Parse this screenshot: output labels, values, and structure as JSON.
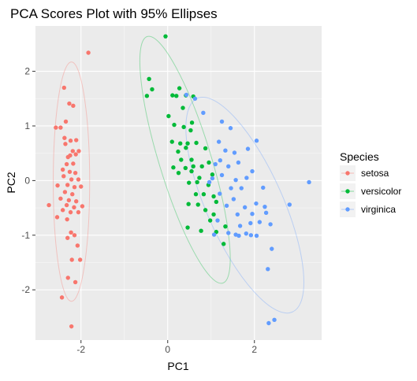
{
  "chart_data": {
    "type": "scatter",
    "title": "PCA Scores Plot with 95% Ellipses",
    "xlabel": "PC1",
    "ylabel": "PC2",
    "xlim": [
      -3.05,
      3.55
    ],
    "ylim": [
      -2.92,
      2.83
    ],
    "xticks": [
      -2,
      0,
      2
    ],
    "yticks": [
      -2,
      -1,
      0,
      1,
      2
    ],
    "grid": true,
    "background": "#ebebeb",
    "legend": {
      "title": "Species",
      "position": "right",
      "entries": [
        "setosa",
        "versicolor",
        "virginica"
      ]
    },
    "series": [
      {
        "name": "setosa",
        "color": "#f8766d",
        "ellipse": {
          "cx": -2.22,
          "cy": -0.02,
          "rx": 0.42,
          "ry": 2.19
        },
        "points": [
          [
            -1.83,
            2.34
          ],
          [
            -2.39,
            1.7
          ],
          [
            -2.27,
            1.41
          ],
          [
            -2.18,
            1.37
          ],
          [
            -2.35,
            1.08
          ],
          [
            -2.58,
            0.97
          ],
          [
            -2.47,
            0.97
          ],
          [
            -2.38,
            0.78
          ],
          [
            -2.24,
            0.73
          ],
          [
            -2.11,
            0.74
          ],
          [
            -2.36,
            0.67
          ],
          [
            -2.19,
            0.54
          ],
          [
            -2.05,
            0.54
          ],
          [
            -2.3,
            0.43
          ],
          [
            -2.25,
            0.46
          ],
          [
            -2.12,
            0.48
          ],
          [
            -2.33,
            0.3
          ],
          [
            -2.18,
            0.31
          ],
          [
            -2.42,
            0.2
          ],
          [
            -2.26,
            0.16
          ],
          [
            -2.13,
            0.14
          ],
          [
            -2.4,
            0.08
          ],
          [
            -2.22,
            0.02
          ],
          [
            -2.06,
            0.02
          ],
          [
            -2.54,
            -0.09
          ],
          [
            -2.31,
            -0.08
          ],
          [
            -2.15,
            -0.12
          ],
          [
            -2.0,
            -0.11
          ],
          [
            -2.37,
            -0.21
          ],
          [
            -2.2,
            -0.25
          ],
          [
            -2.47,
            -0.33
          ],
          [
            -2.28,
            -0.36
          ],
          [
            -2.11,
            -0.38
          ],
          [
            -2.74,
            -0.45
          ],
          [
            -2.33,
            -0.45
          ],
          [
            -2.16,
            -0.49
          ],
          [
            -1.97,
            -0.47
          ],
          [
            -2.42,
            -0.54
          ],
          [
            -2.24,
            -0.58
          ],
          [
            -2.06,
            -0.58
          ],
          [
            -2.55,
            -0.67
          ],
          [
            -2.32,
            -0.71
          ],
          [
            -2.23,
            -0.95
          ],
          [
            -2.15,
            -1.0
          ],
          [
            -2.31,
            -1.05
          ],
          [
            -2.08,
            -1.19
          ],
          [
            -2.21,
            -1.45
          ],
          [
            -2.02,
            -1.45
          ],
          [
            -2.3,
            -1.78
          ],
          [
            -2.13,
            -1.86
          ],
          [
            -2.44,
            -2.14
          ],
          [
            -2.22,
            -2.67
          ]
        ]
      },
      {
        "name": "versicolor",
        "color": "#00ba38",
        "ellipse": {
          "cx": 0.4,
          "cy": 0.38,
          "rx": 0.6,
          "ry": 2.36,
          "rotate": -17
        },
        "points": [
          [
            -0.05,
            2.64
          ],
          [
            -0.43,
            1.86
          ],
          [
            -0.36,
            1.67
          ],
          [
            0.27,
            1.69
          ],
          [
            0.11,
            1.56
          ],
          [
            0.2,
            1.55
          ],
          [
            0.42,
            1.56
          ],
          [
            0.59,
            1.54
          ],
          [
            -0.48,
            1.55
          ],
          [
            0.35,
            1.33
          ],
          [
            0.02,
            1.18
          ],
          [
            0.56,
            1.06
          ],
          [
            0.15,
            1.02
          ],
          [
            0.37,
            0.98
          ],
          [
            0.53,
            0.92
          ],
          [
            0.1,
            0.71
          ],
          [
            0.29,
            0.68
          ],
          [
            0.46,
            0.68
          ],
          [
            0.66,
            0.69
          ],
          [
            0.24,
            0.53
          ],
          [
            0.42,
            0.6
          ],
          [
            0.87,
            0.59
          ],
          [
            0.31,
            0.38
          ],
          [
            0.55,
            0.38
          ],
          [
            0.95,
            0.33
          ],
          [
            0.13,
            0.24
          ],
          [
            0.41,
            0.23
          ],
          [
            0.59,
            0.26
          ],
          [
            0.79,
            0.26
          ],
          [
            0.25,
            0.14
          ],
          [
            0.55,
            0.17
          ],
          [
            0.73,
            0.05
          ],
          [
            1.03,
            0.11
          ],
          [
            0.49,
            -0.04
          ],
          [
            0.68,
            -0.03
          ],
          [
            0.94,
            -0.08
          ],
          [
            0.65,
            -0.25
          ],
          [
            0.83,
            -0.25
          ],
          [
            1.06,
            -0.29
          ],
          [
            0.48,
            -0.43
          ],
          [
            0.7,
            -0.44
          ],
          [
            1.12,
            -0.39
          ],
          [
            0.87,
            -0.54
          ],
          [
            1.06,
            -0.62
          ],
          [
            0.98,
            -0.73
          ],
          [
            0.46,
            -0.86
          ],
          [
            0.77,
            -0.92
          ],
          [
            1.33,
            -0.84
          ],
          [
            1.12,
            -0.94
          ],
          [
            1.29,
            -1.16
          ]
        ]
      },
      {
        "name": "virginica",
        "color": "#619cff",
        "ellipse": {
          "cx": 1.78,
          "cy": -0.45,
          "rx": 0.88,
          "ry": 2.14,
          "rotate": -24
        },
        "points": [
          [
            0.43,
            1.57
          ],
          [
            0.63,
            1.5
          ],
          [
            0.82,
            1.24
          ],
          [
            1.25,
            1.08
          ],
          [
            1.45,
            0.96
          ],
          [
            2.05,
            0.73
          ],
          [
            1.18,
            0.71
          ],
          [
            1.33,
            0.55
          ],
          [
            1.54,
            0.51
          ],
          [
            1.85,
            0.58
          ],
          [
            1.21,
            0.37
          ],
          [
            1.63,
            0.33
          ],
          [
            1.1,
            0.3
          ],
          [
            1.4,
            0.26
          ],
          [
            1.95,
            0.17
          ],
          [
            1.25,
            0.1
          ],
          [
            1.57,
            0.01
          ],
          [
            1.03,
            0.04
          ],
          [
            0.96,
            -0.03
          ],
          [
            1.82,
            0.05
          ],
          [
            1.46,
            -0.14
          ],
          [
            1.7,
            -0.14
          ],
          [
            2.2,
            -0.13
          ],
          [
            3.26,
            -0.03
          ],
          [
            1.2,
            -0.24
          ],
          [
            1.52,
            -0.34
          ],
          [
            2.04,
            -0.42
          ],
          [
            1.36,
            -0.46
          ],
          [
            1.78,
            -0.49
          ],
          [
            2.24,
            -0.48
          ],
          [
            2.81,
            -0.44
          ],
          [
            1.61,
            -0.62
          ],
          [
            1.95,
            -0.61
          ],
          [
            1.15,
            -0.73
          ],
          [
            2.27,
            -0.59
          ],
          [
            1.91,
            -0.78
          ],
          [
            2.12,
            -0.76
          ],
          [
            1.67,
            -0.83
          ],
          [
            2.37,
            -0.8
          ],
          [
            1.4,
            -0.96
          ],
          [
            1.81,
            -0.97
          ],
          [
            1.92,
            -1.0
          ],
          [
            1.64,
            -1.01
          ],
          [
            1.57,
            -0.99
          ],
          [
            1.07,
            -0.99
          ],
          [
            2.05,
            -1.01
          ],
          [
            2.31,
            -1.62
          ],
          [
            2.46,
            -2.55
          ],
          [
            2.33,
            -2.61
          ],
          [
            2.4,
            -1.25
          ]
        ]
      }
    ]
  }
}
